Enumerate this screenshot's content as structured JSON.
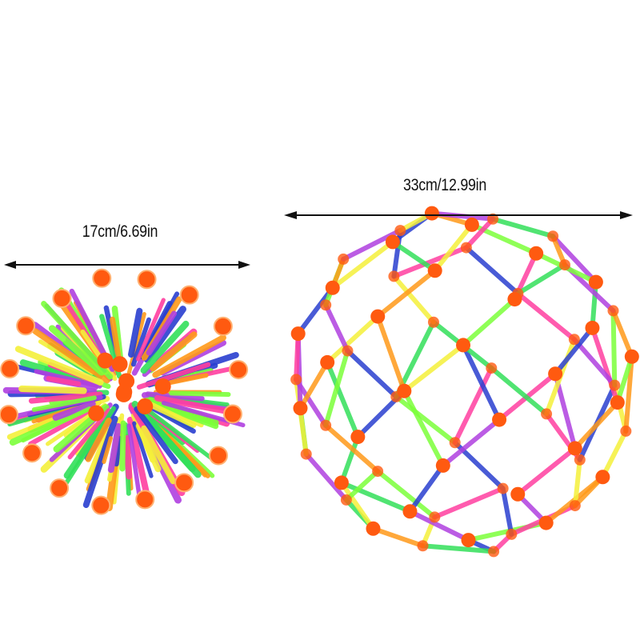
{
  "small_ball": {
    "dimension_label": "17cm/6.69in"
  },
  "large_ball": {
    "dimension_label": "33cm/12.99in"
  },
  "colors": {
    "strips": [
      "#ff3fa0",
      "#2a3fd0",
      "#33e05a",
      "#f5f03a",
      "#ff9a1a",
      "#b040e0",
      "#7cff3a"
    ],
    "hubs": "#ff5a10",
    "arrow": "#111111"
  }
}
